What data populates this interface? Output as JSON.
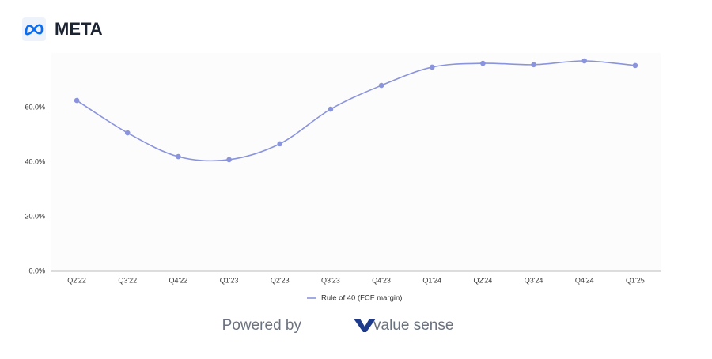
{
  "header": {
    "title": "META"
  },
  "chart_data": {
    "type": "line",
    "categories": [
      "Q2'22",
      "Q3'22",
      "Q4'22",
      "Q1'23",
      "Q2'23",
      "Q3'23",
      "Q4'23",
      "Q1'24",
      "Q2'24",
      "Q3'24",
      "Q4'24",
      "Q1'25"
    ],
    "series": [
      {
        "name": "Rule of 40 (FCF margin)",
        "color": "#8a94dc",
        "values": [
          62.6,
          50.7,
          42.0,
          40.9,
          46.7,
          59.4,
          68.1,
          74.8,
          76.2,
          75.7,
          77.1,
          75.4
        ]
      }
    ],
    "ylim": [
      0,
      80
    ],
    "yticks": [
      {
        "value": 0,
        "label": "0.0%"
      },
      {
        "value": 20,
        "label": "20.0%"
      },
      {
        "value": 40,
        "label": "40.0%"
      },
      {
        "value": 60,
        "label": "60.0%"
      }
    ],
    "grid": false,
    "legend": "bottom"
  },
  "footer": {
    "powered_by": "Powered by",
    "brand": "value sense"
  }
}
